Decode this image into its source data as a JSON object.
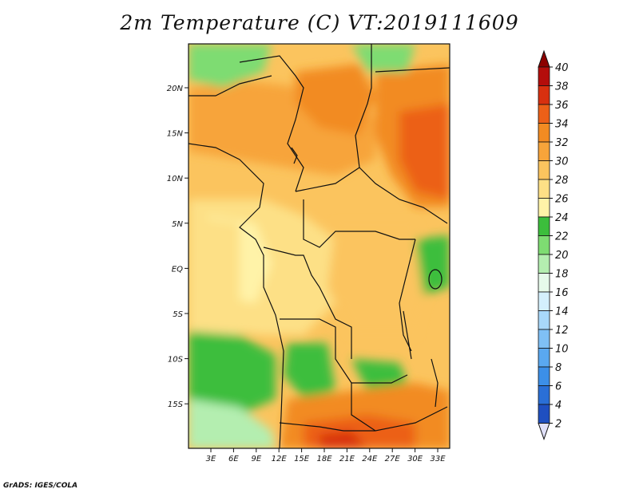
{
  "title": "2m Temperature (C) VT:2019111609",
  "footer": "GrADS: IGES/COLA",
  "map": {
    "lat_labels": [
      "20N",
      "15N",
      "10N",
      "5N",
      "EQ",
      "5S",
      "10S",
      "15S"
    ],
    "lon_labels": [
      "3E",
      "6E",
      "9E",
      "12E",
      "15E",
      "18E",
      "21E",
      "24E",
      "27E",
      "30E",
      "33E"
    ]
  },
  "colorbar": {
    "levels": [
      "2",
      "4",
      "6",
      "8",
      "10",
      "12",
      "14",
      "16",
      "18",
      "20",
      "22",
      "24",
      "26",
      "28",
      "30",
      "32",
      "34",
      "36",
      "38",
      "40"
    ],
    "colors": [
      "#1a1a80",
      "#1f4fc0",
      "#2a6fd6",
      "#3c8fe8",
      "#5aa8f0",
      "#7fc0f5",
      "#a8d8fa",
      "#d4f0fd",
      "#e6faea",
      "#b4eeb0",
      "#7edc72",
      "#3cbe3c",
      "#fff3a8",
      "#fde086",
      "#fbc45e",
      "#f7a43a",
      "#f28b22",
      "#ec6018",
      "#d8300f",
      "#b40d0b",
      "#8c0000"
    ],
    "under_color": "#e0e0f8",
    "over_color": "#8c0000"
  },
  "legend": {}
}
